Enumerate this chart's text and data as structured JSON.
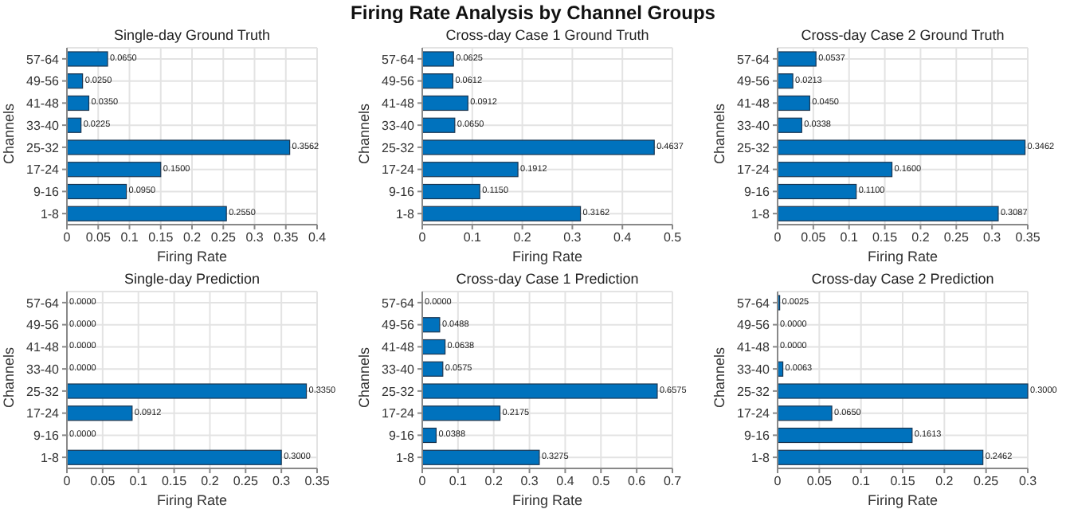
{
  "chart_data": [
    {
      "type": "bar",
      "orientation": "horizontal",
      "title": "Single-day Ground Truth",
      "xlabel": "Firing Rate",
      "ylabel": "Channels",
      "annotations": [
        "Firing Rate Analysis by Channel Groups"
      ],
      "categories": [
        "57-64",
        "49-56",
        "41-48",
        "33-40",
        "25-32",
        "17-24",
        "9-16",
        "1-8"
      ],
      "values": [
        0.065,
        0.025,
        0.035,
        0.0225,
        0.3562,
        0.15,
        0.095,
        0.255
      ],
      "value_labels": [
        "0.0650",
        "0.0250",
        "0.0350",
        "0.0225",
        "0.3562",
        "0.1500",
        "0.0950",
        "0.2550"
      ],
      "color": "#0072bd",
      "xlim": [
        0,
        0.4
      ],
      "xticks": [
        0,
        0.05,
        0.1,
        0.15,
        0.2,
        0.25,
        0.3,
        0.35,
        0.4
      ],
      "grid": true
    },
    {
      "type": "bar",
      "orientation": "horizontal",
      "title": "Cross-day Case 1 Ground Truth",
      "xlabel": "Firing Rate",
      "ylabel": "Channels",
      "categories": [
        "57-64",
        "49-56",
        "41-48",
        "33-40",
        "25-32",
        "17-24",
        "9-16",
        "1-8"
      ],
      "values": [
        0.0625,
        0.0612,
        0.0912,
        0.065,
        0.4637,
        0.1912,
        0.115,
        0.3162
      ],
      "value_labels": [
        "0.0625",
        "0.0612",
        "0.0912",
        "0.0650",
        "0.4637",
        "0.1912",
        "0.1150",
        "0.3162"
      ],
      "color": "#0072bd",
      "xlim": [
        0,
        0.5
      ],
      "xticks": [
        0,
        0.1,
        0.2,
        0.3,
        0.4,
        0.5
      ],
      "grid": true
    },
    {
      "type": "bar",
      "orientation": "horizontal",
      "title": "Cross-day Case 2 Ground Truth",
      "xlabel": "Firing Rate",
      "ylabel": "Channels",
      "categories": [
        "57-64",
        "49-56",
        "41-48",
        "33-40",
        "25-32",
        "17-24",
        "9-16",
        "1-8"
      ],
      "values": [
        0.0537,
        0.0213,
        0.045,
        0.0338,
        0.3462,
        0.16,
        0.11,
        0.3087
      ],
      "value_labels": [
        "0.0537",
        "0.0213",
        "0.0450",
        "0.0338",
        "0.3462",
        "0.1600",
        "0.1100",
        "0.3087"
      ],
      "color": "#0072bd",
      "xlim": [
        0,
        0.35
      ],
      "xticks": [
        0,
        0.05,
        0.1,
        0.15,
        0.2,
        0.25,
        0.3,
        0.35
      ],
      "grid": true
    },
    {
      "type": "bar",
      "orientation": "horizontal",
      "title": "Single-day Prediction",
      "xlabel": "Firing Rate",
      "ylabel": "Channels",
      "categories": [
        "57-64",
        "49-56",
        "41-48",
        "33-40",
        "25-32",
        "17-24",
        "9-16",
        "1-8"
      ],
      "values": [
        0,
        0,
        0,
        0,
        0.335,
        0.0912,
        0,
        0.3
      ],
      "value_labels": [
        "0.0000",
        "0.0000",
        "0.0000",
        "0.0000",
        "0.3350",
        "0.0912",
        "0.0000",
        "0.3000"
      ],
      "color": "#0072bd",
      "xlim": [
        0,
        0.35
      ],
      "xticks": [
        0,
        0.05,
        0.1,
        0.15,
        0.2,
        0.25,
        0.3,
        0.35
      ],
      "grid": true
    },
    {
      "type": "bar",
      "orientation": "horizontal",
      "title": "Cross-day Case 1 Prediction",
      "xlabel": "Firing Rate",
      "ylabel": "Channels",
      "categories": [
        "57-64",
        "49-56",
        "41-48",
        "33-40",
        "25-32",
        "17-24",
        "9-16",
        "1-8"
      ],
      "values": [
        0,
        0.0488,
        0.0638,
        0.0575,
        0.6575,
        0.2175,
        0.0388,
        0.3275
      ],
      "value_labels": [
        "0.0000",
        "0.0488",
        "0.0638",
        "0.0575",
        "0.6575",
        "0.2175",
        "0.0388",
        "0.3275"
      ],
      "color": "#0072bd",
      "xlim": [
        0,
        0.7
      ],
      "xticks": [
        0,
        0.1,
        0.2,
        0.3,
        0.4,
        0.5,
        0.6,
        0.7
      ],
      "grid": true
    },
    {
      "type": "bar",
      "orientation": "horizontal",
      "title": "Cross-day Case 2 Prediction",
      "xlabel": "Firing Rate",
      "ylabel": "Channels",
      "categories": [
        "57-64",
        "49-56",
        "41-48",
        "33-40",
        "25-32",
        "17-24",
        "9-16",
        "1-8"
      ],
      "values": [
        0.0025,
        0,
        0,
        0.0063,
        0.3,
        0.065,
        0.1613,
        0.2462
      ],
      "value_labels": [
        "0.0025",
        "0.0000",
        "0.0000",
        "0.0063",
        "0.3000",
        "0.0650",
        "0.1613",
        "0.2462"
      ],
      "color": "#0072bd",
      "xlim": [
        0,
        0.3
      ],
      "xticks": [
        0,
        0.05,
        0.1,
        0.15,
        0.2,
        0.25,
        0.3
      ],
      "grid": true
    }
  ]
}
